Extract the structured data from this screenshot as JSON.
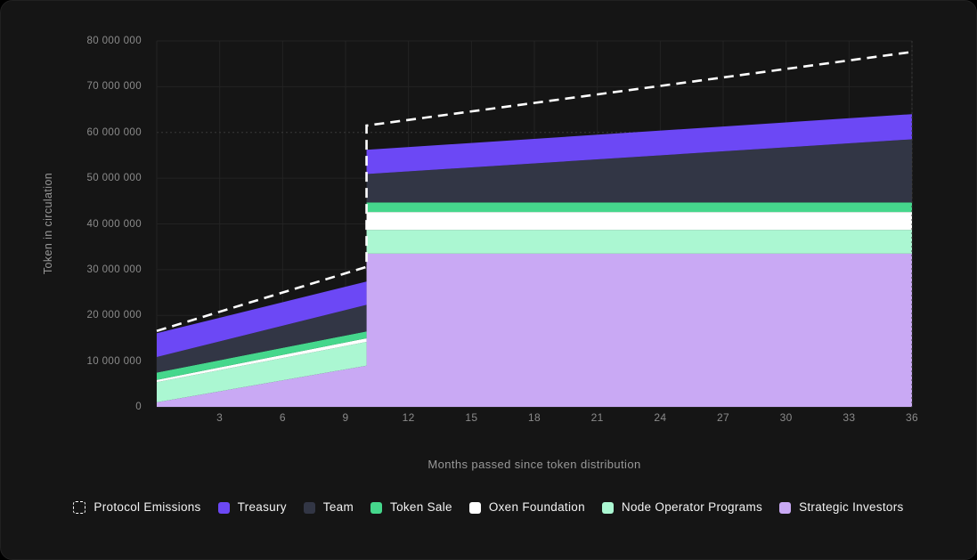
{
  "chart_data": {
    "type": "area",
    "stacked": true,
    "title": "",
    "xlabel": "Months passed since token distribution",
    "ylabel": "Token in circulation",
    "xlim": [
      0,
      36
    ],
    "ylim": [
      0,
      80000000
    ],
    "grid": true,
    "legend_position": "bottom",
    "x_ticks": [
      {
        "value": 3,
        "label": "3"
      },
      {
        "value": 6,
        "label": "6"
      },
      {
        "value": 9,
        "label": "9"
      },
      {
        "value": 12,
        "label": "12"
      },
      {
        "value": 15,
        "label": "15"
      },
      {
        "value": 18,
        "label": "18"
      },
      {
        "value": 21,
        "label": "21"
      },
      {
        "value": 24,
        "label": "24"
      },
      {
        "value": 27,
        "label": "27"
      },
      {
        "value": 30,
        "label": "30"
      },
      {
        "value": 33,
        "label": "33"
      },
      {
        "value": 36,
        "label": "36"
      }
    ],
    "y_ticks": [
      {
        "value": 0,
        "label": "0"
      },
      {
        "value": 10000000,
        "label": "10 000 000"
      },
      {
        "value": 20000000,
        "label": "20 000 000"
      },
      {
        "value": 30000000,
        "label": "30 000 000"
      },
      {
        "value": 40000000,
        "label": "40 000 000"
      },
      {
        "value": 50000000,
        "label": "50 000 000"
      },
      {
        "value": 60000000,
        "label": "60 000 000",
        "grid": "dotted"
      },
      {
        "value": 70000000,
        "label": "70 000 000"
      },
      {
        "value": 80000000,
        "label": "80 000 000"
      }
    ],
    "x": [
      0,
      10,
      10,
      36
    ],
    "cliff_month": 10,
    "series": [
      {
        "name": "Strategic Investors",
        "color": "#c9a9f4",
        "values": [
          1000000,
          9000000,
          33500000,
          33500000
        ]
      },
      {
        "name": "Node Operator Programs",
        "color": "#abf7d2",
        "values": [
          4400000,
          5200000,
          5200000,
          5200000
        ]
      },
      {
        "name": "Oxen Foundation",
        "color": "#ffffff",
        "values": [
          500000,
          800000,
          3900000,
          3900000
        ]
      },
      {
        "name": "Token Sale",
        "color": "#45d78c",
        "values": [
          1600000,
          1500000,
          2100000,
          2100000
        ]
      },
      {
        "name": "Team",
        "color": "#323645",
        "values": [
          3400000,
          5800000,
          6200000,
          13800000
        ]
      },
      {
        "name": "Treasury",
        "color": "#6c48f5",
        "values": [
          5200000,
          5100000,
          5300000,
          5500000
        ]
      }
    ],
    "line": {
      "name": "Protocol Emissions",
      "color": "#ffffff",
      "style": "dashed",
      "values": [
        16600000,
        30600000,
        61500000,
        77600000
      ]
    },
    "legend": [
      "Protocol Emissions",
      "Treasury",
      "Team",
      "Token Sale",
      "Oxen Foundation",
      "Node Operator Programs",
      "Strategic Investors"
    ]
  },
  "theme": {
    "page_background": "#000000",
    "card_background": "#151515",
    "grid_color": "#232323",
    "dotted_grid_color": "#3a3a3a",
    "border_bottom_color": "#2e2e2e",
    "tick_text_color": "#8b8b8b",
    "axis_title_color": "#989898",
    "legend_text_color": "#f2f2f2"
  }
}
